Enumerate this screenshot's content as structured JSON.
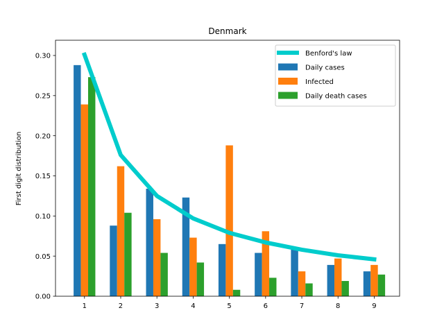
{
  "chart_data": {
    "type": "bar",
    "title": "Denmark",
    "xlabel": "",
    "ylabel": "First digit distribution",
    "categories": [
      "1",
      "2",
      "3",
      "4",
      "5",
      "6",
      "7",
      "8",
      "9"
    ],
    "y_ticks": [
      "0.00",
      "0.05",
      "0.10",
      "0.15",
      "0.20",
      "0.25",
      "0.30"
    ],
    "ylim": [
      0,
      0.319
    ],
    "xlim": [
      0.2,
      9.7
    ],
    "grid": false,
    "legend_position": "top-right",
    "line_series": {
      "name": "Benford's law",
      "color": "#00cccc",
      "values": [
        0.301,
        0.176,
        0.125,
        0.097,
        0.079,
        0.067,
        0.058,
        0.051,
        0.046
      ]
    },
    "series": [
      {
        "name": "Daily cases",
        "color": "#1f77b4",
        "values": [
          0.288,
          0.088,
          0.134,
          0.123,
          0.065,
          0.054,
          0.059,
          0.039,
          0.031
        ]
      },
      {
        "name": "Infected",
        "color": "#ff7f0e",
        "values": [
          0.239,
          0.162,
          0.096,
          0.073,
          0.188,
          0.081,
          0.031,
          0.047,
          0.039
        ]
      },
      {
        "name": "Daily death cases",
        "color": "#2ca02c",
        "values": [
          0.273,
          0.104,
          0.054,
          0.042,
          0.008,
          0.023,
          0.016,
          0.019,
          0.027
        ]
      }
    ]
  }
}
